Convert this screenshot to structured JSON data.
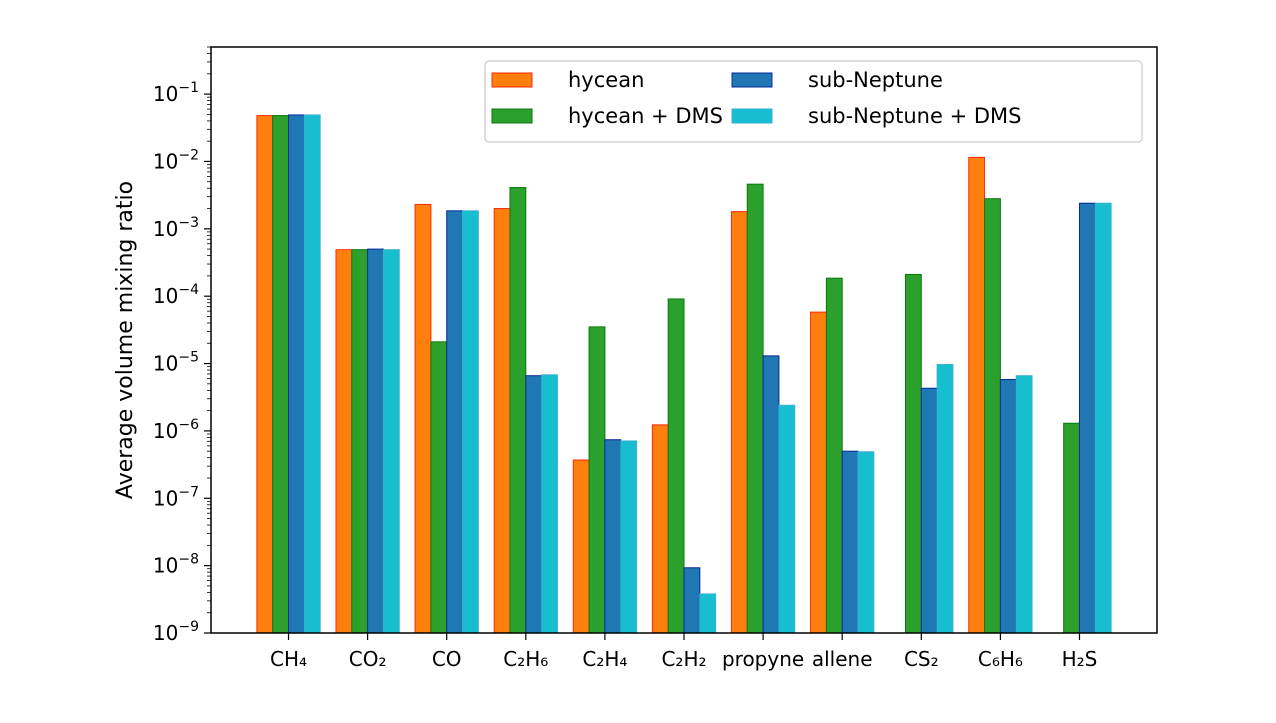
{
  "chart_data": {
    "type": "bar",
    "title": "",
    "xlabel": "",
    "ylabel": "Average volume mixing ratio",
    "yscale": "log",
    "ylim": [
      1e-09,
      0.5
    ],
    "yticks": [
      -9,
      -8,
      -7,
      -6,
      -5,
      -4,
      -3,
      -2,
      -1
    ],
    "ytick_base": "10",
    "grid": false,
    "legend_position": "top-right",
    "categories": [
      "CH₄",
      "CO₂",
      "CO",
      "C₂H₆",
      "C₂H₄",
      "C₂H₂",
      "propyne",
      "allene",
      "CS₂",
      "C₆H₆",
      "H₂S"
    ],
    "series": [
      {
        "name": "hycean",
        "color": "#ff7f0e",
        "edge": "#ff2a0a",
        "values": [
          0.048,
          0.00049,
          0.0023,
          0.002,
          3.7e-07,
          1.23e-06,
          0.0018,
          5.8e-05,
          null,
          0.0115,
          null
        ]
      },
      {
        "name": "hycean + DMS",
        "color": "#2ca02c",
        "edge": "#0a7a0a",
        "values": [
          0.048,
          0.00049,
          2.1e-05,
          0.0041,
          3.5e-05,
          9.1e-05,
          0.0046,
          0.000185,
          0.00021,
          0.0028,
          1.3e-06
        ]
      },
      {
        "name": "sub-Neptune",
        "color": "#1f77b4",
        "edge": "#0a2a9a",
        "values": [
          0.049,
          0.0005,
          0.00185,
          6.6e-06,
          7.4e-07,
          9.3e-09,
          1.3e-05,
          5e-07,
          4.3e-06,
          5.8e-06,
          0.0024
        ]
      },
      {
        "name": "sub-Neptune + DMS",
        "color": "#17becf",
        "edge": "#3ab0d0",
        "values": [
          0.049,
          0.00049,
          0.00185,
          6.8e-06,
          7.1e-07,
          3.8e-09,
          2.4e-06,
          4.9e-07,
          9.7e-06,
          6.6e-06,
          0.0024
        ]
      }
    ]
  }
}
